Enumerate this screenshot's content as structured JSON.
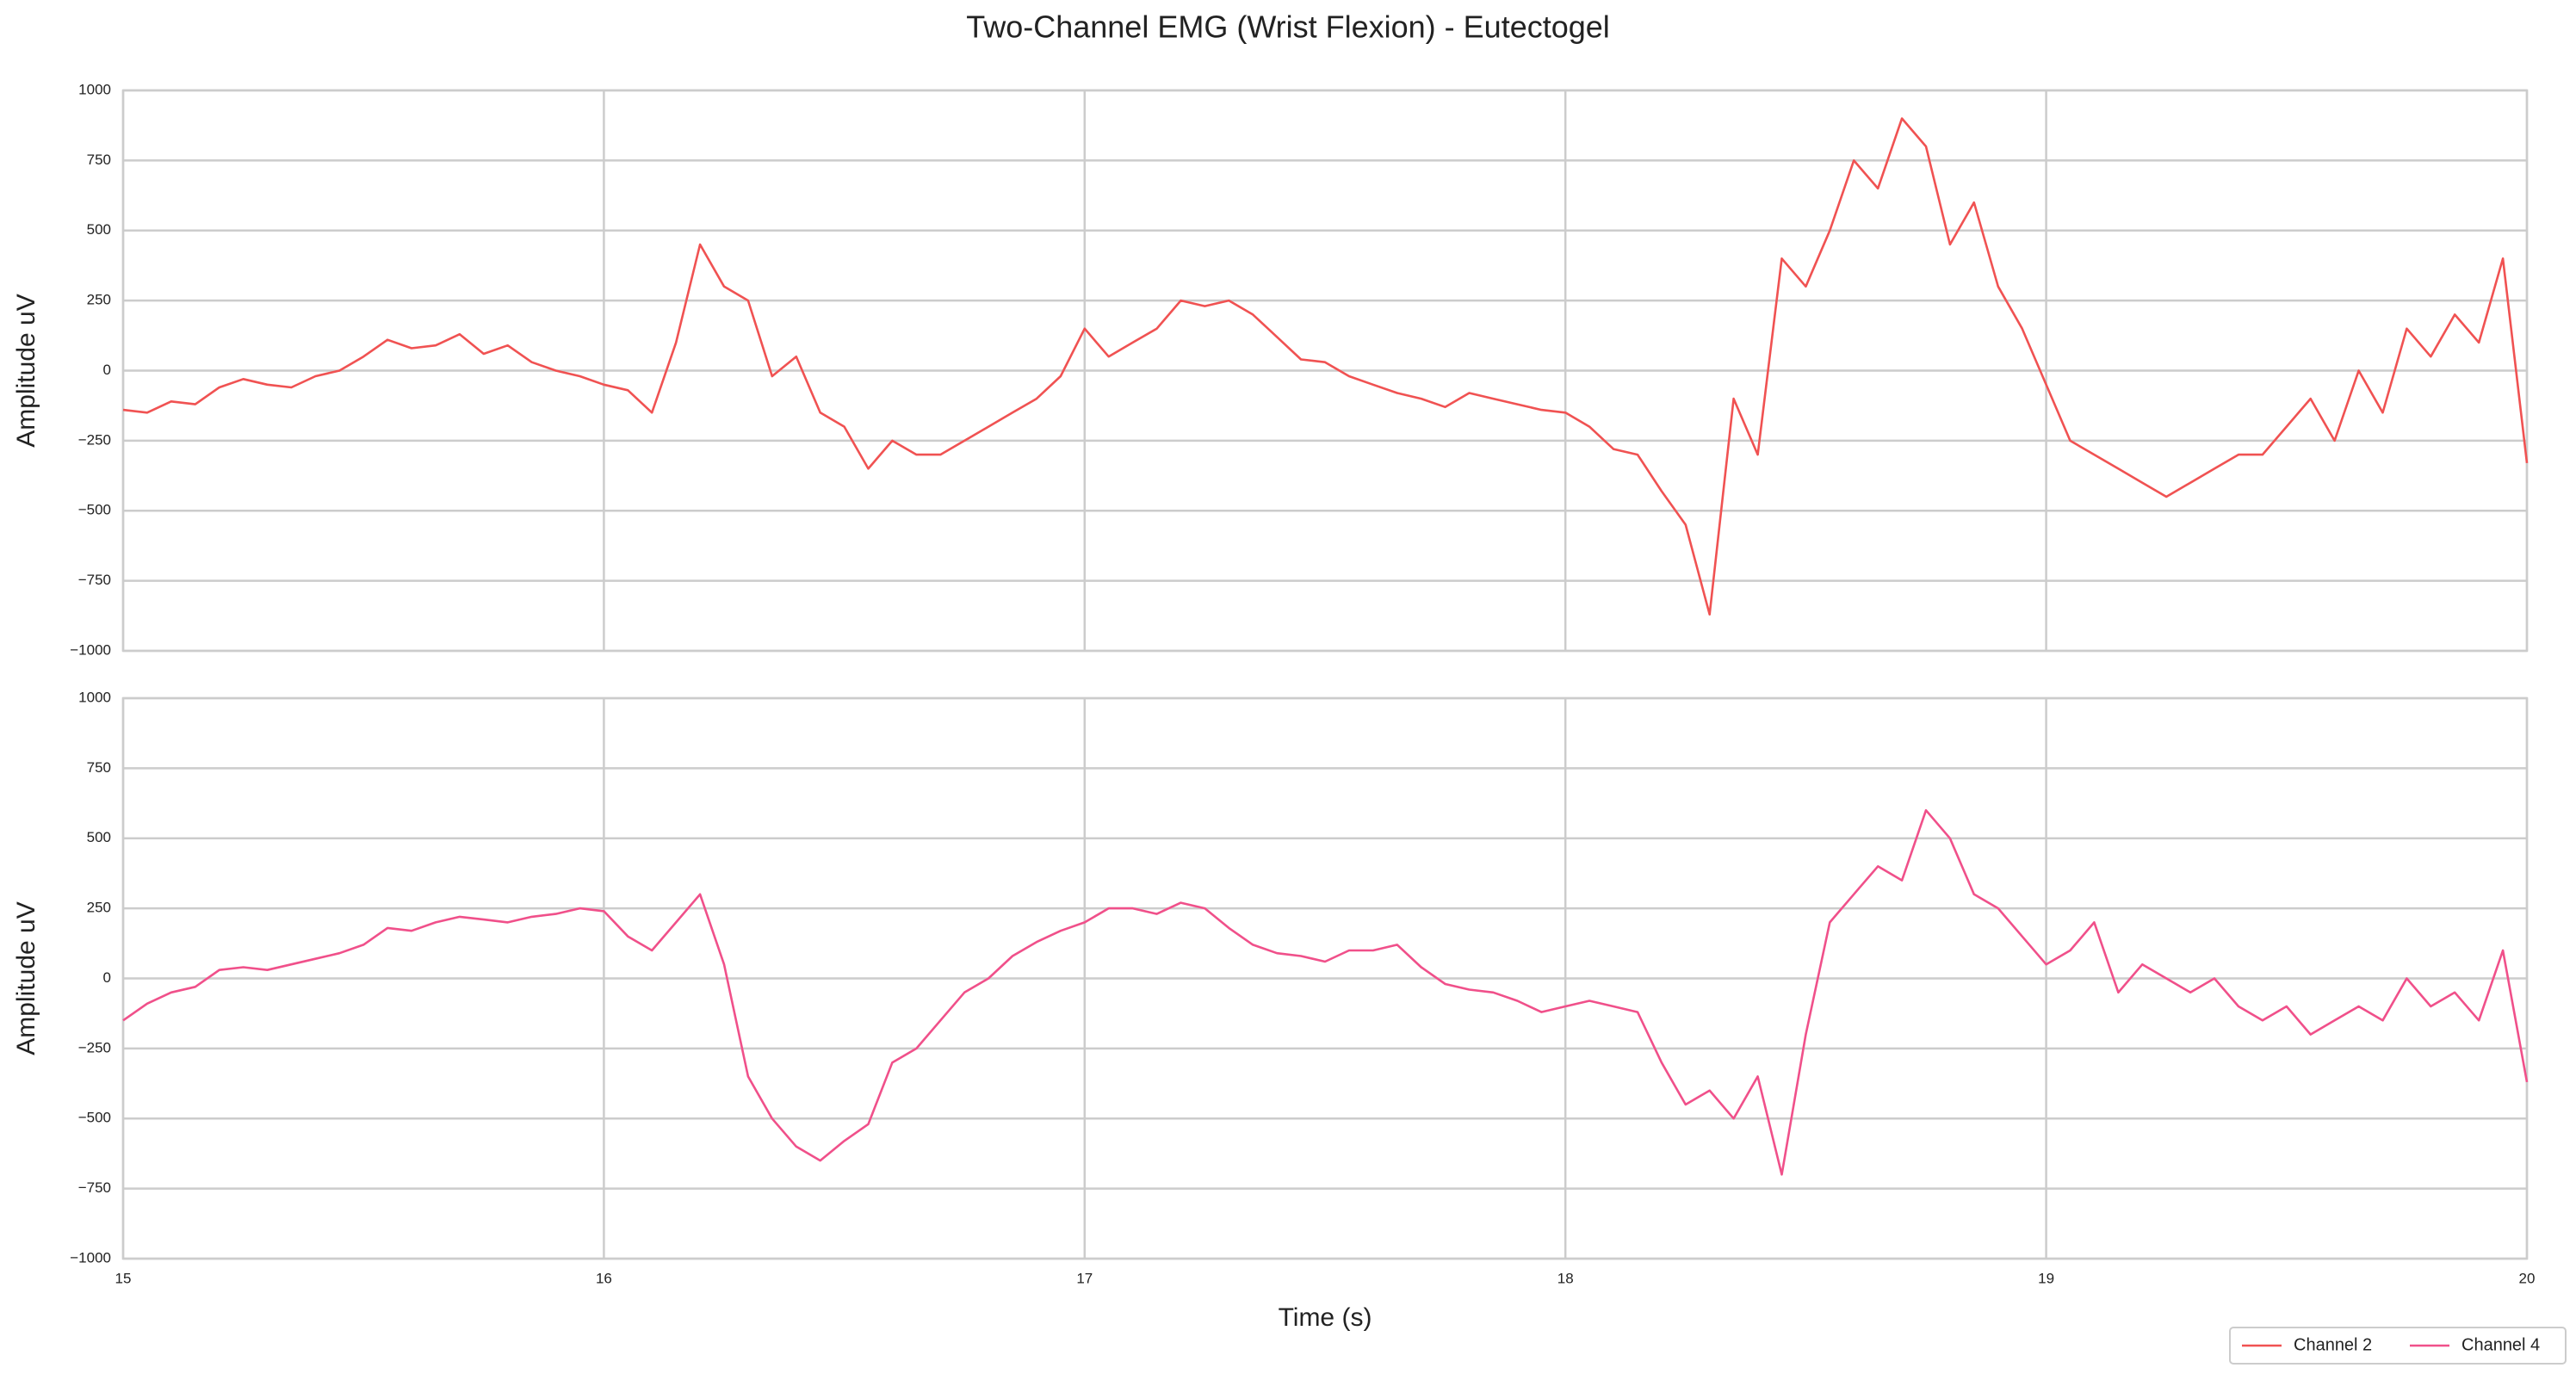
{
  "chart_data": [
    {
      "type": "line",
      "title": "Two-Channel EMG (Wrist Flexion) - Eutectogel",
      "ylabel": "Amplitude uV",
      "x": [
        15,
        15.05,
        15.1,
        15.15,
        15.2,
        15.25,
        15.3,
        15.35,
        15.4,
        15.45,
        15.5,
        15.55,
        15.6,
        15.65,
        15.7,
        15.75,
        15.8,
        15.85,
        15.9,
        15.95,
        16,
        16.05,
        16.1,
        16.15,
        16.2,
        16.25,
        16.3,
        16.35,
        16.4,
        16.45,
        16.5,
        16.55,
        16.6,
        16.65,
        16.7,
        16.75,
        16.8,
        16.85,
        16.9,
        16.95,
        17,
        17.05,
        17.1,
        17.15,
        17.2,
        17.25,
        17.3,
        17.35,
        17.4,
        17.45,
        17.5,
        17.55,
        17.6,
        17.65,
        17.7,
        17.75,
        17.8,
        17.85,
        17.9,
        17.95,
        18,
        18.05,
        18.1,
        18.15,
        18.2,
        18.25,
        18.3,
        18.35,
        18.4,
        18.45,
        18.5,
        18.55,
        18.6,
        18.65,
        18.7,
        18.75,
        18.8,
        18.85,
        18.9,
        18.95,
        19,
        19.05,
        19.1,
        19.15,
        19.2,
        19.25,
        19.3,
        19.35,
        19.4,
        19.45,
        19.5,
        19.55,
        19.6,
        19.65,
        19.7,
        19.75,
        19.8,
        19.85,
        19.9,
        19.95,
        20
      ],
      "xlim": [
        15,
        20
      ],
      "xticks": [
        15,
        16,
        17,
        18,
        19,
        20
      ],
      "ylim": [
        -1000,
        1000
      ],
      "yticks": [
        {
          "value": -1000,
          "label": "−1000"
        },
        {
          "value": -750,
          "label": "−750"
        },
        {
          "value": -500,
          "label": "−500"
        },
        {
          "value": -250,
          "label": "−250"
        },
        0,
        250,
        500,
        750,
        1000
      ],
      "grid": true,
      "series": [
        {
          "name": "Channel 2",
          "color": "#f05252",
          "values": [
            -140,
            -150,
            -110,
            -120,
            -60,
            -30,
            -50,
            -60,
            -20,
            0,
            50,
            110,
            80,
            90,
            130,
            60,
            90,
            30,
            0,
            -20,
            -50,
            -70,
            -150,
            100,
            450,
            300,
            250,
            -20,
            50,
            -150,
            -200,
            -350,
            -250,
            -300,
            -300,
            -250,
            -200,
            -150,
            -100,
            -20,
            150,
            50,
            100,
            150,
            250,
            230,
            250,
            200,
            120,
            40,
            30,
            -20,
            -50,
            -80,
            -100,
            -130,
            -80,
            -100,
            -120,
            -140,
            -150,
            -200,
            -280,
            -300,
            -430,
            -550,
            -870,
            -100,
            -300,
            400,
            300,
            500,
            750,
            650,
            900,
            800,
            450,
            600,
            300,
            150,
            -50,
            -250,
            -300,
            -350,
            -400,
            -450,
            -400,
            -350,
            -300,
            -300,
            -200,
            -100,
            -250,
            0,
            -150,
            150,
            50,
            200,
            100,
            400,
            -330
          ]
        }
      ]
    },
    {
      "type": "line",
      "ylabel": "Amplitude uV",
      "xlabel": "Time (s)",
      "x": [
        15,
        15.05,
        15.1,
        15.15,
        15.2,
        15.25,
        15.3,
        15.35,
        15.4,
        15.45,
        15.5,
        15.55,
        15.6,
        15.65,
        15.7,
        15.75,
        15.8,
        15.85,
        15.9,
        15.95,
        16,
        16.05,
        16.1,
        16.15,
        16.2,
        16.25,
        16.3,
        16.35,
        16.4,
        16.45,
        16.5,
        16.55,
        16.6,
        16.65,
        16.7,
        16.75,
        16.8,
        16.85,
        16.9,
        16.95,
        17,
        17.05,
        17.1,
        17.15,
        17.2,
        17.25,
        17.3,
        17.35,
        17.4,
        17.45,
        17.5,
        17.55,
        17.6,
        17.65,
        17.7,
        17.75,
        17.8,
        17.85,
        17.9,
        17.95,
        18,
        18.05,
        18.1,
        18.15,
        18.2,
        18.25,
        18.3,
        18.35,
        18.4,
        18.45,
        18.5,
        18.55,
        18.6,
        18.65,
        18.7,
        18.75,
        18.8,
        18.85,
        18.9,
        18.95,
        19,
        19.05,
        19.1,
        19.15,
        19.2,
        19.25,
        19.3,
        19.35,
        19.4,
        19.45,
        19.5,
        19.55,
        19.6,
        19.65,
        19.7,
        19.75,
        19.8,
        19.85,
        19.9,
        19.95,
        20
      ],
      "xlim": [
        15,
        20
      ],
      "xticks": [
        15,
        16,
        17,
        18,
        19,
        20
      ],
      "ylim": [
        -1000,
        1000
      ],
      "yticks": [
        {
          "value": -1000,
          "label": "−1000"
        },
        {
          "value": -750,
          "label": "−750"
        },
        {
          "value": -500,
          "label": "−500"
        },
        {
          "value": -250,
          "label": "−250"
        },
        0,
        250,
        500,
        750,
        1000
      ],
      "grid": true,
      "legend": "lower right",
      "series": [
        {
          "name": "Channel 4",
          "color": "#f0508a",
          "values": [
            -150,
            -90,
            -50,
            -30,
            30,
            40,
            30,
            50,
            70,
            90,
            120,
            180,
            170,
            200,
            220,
            210,
            200,
            220,
            230,
            250,
            240,
            150,
            100,
            200,
            300,
            50,
            -350,
            -500,
            -600,
            -650,
            -580,
            -520,
            -300,
            -250,
            -150,
            -50,
            0,
            80,
            130,
            170,
            200,
            250,
            250,
            230,
            270,
            250,
            180,
            120,
            90,
            80,
            60,
            100,
            100,
            120,
            40,
            -20,
            -40,
            -50,
            -80,
            -120,
            -100,
            -80,
            -100,
            -120,
            -300,
            -450,
            -400,
            -500,
            -350,
            -700,
            -200,
            200,
            300,
            400,
            350,
            600,
            500,
            300,
            250,
            150,
            50,
            100,
            200,
            -50,
            50,
            0,
            -50,
            0,
            -100,
            -150,
            -100,
            -200,
            -150,
            -100,
            -150,
            0,
            -100,
            -50,
            -150,
            100,
            -370
          ]
        }
      ]
    }
  ]
}
